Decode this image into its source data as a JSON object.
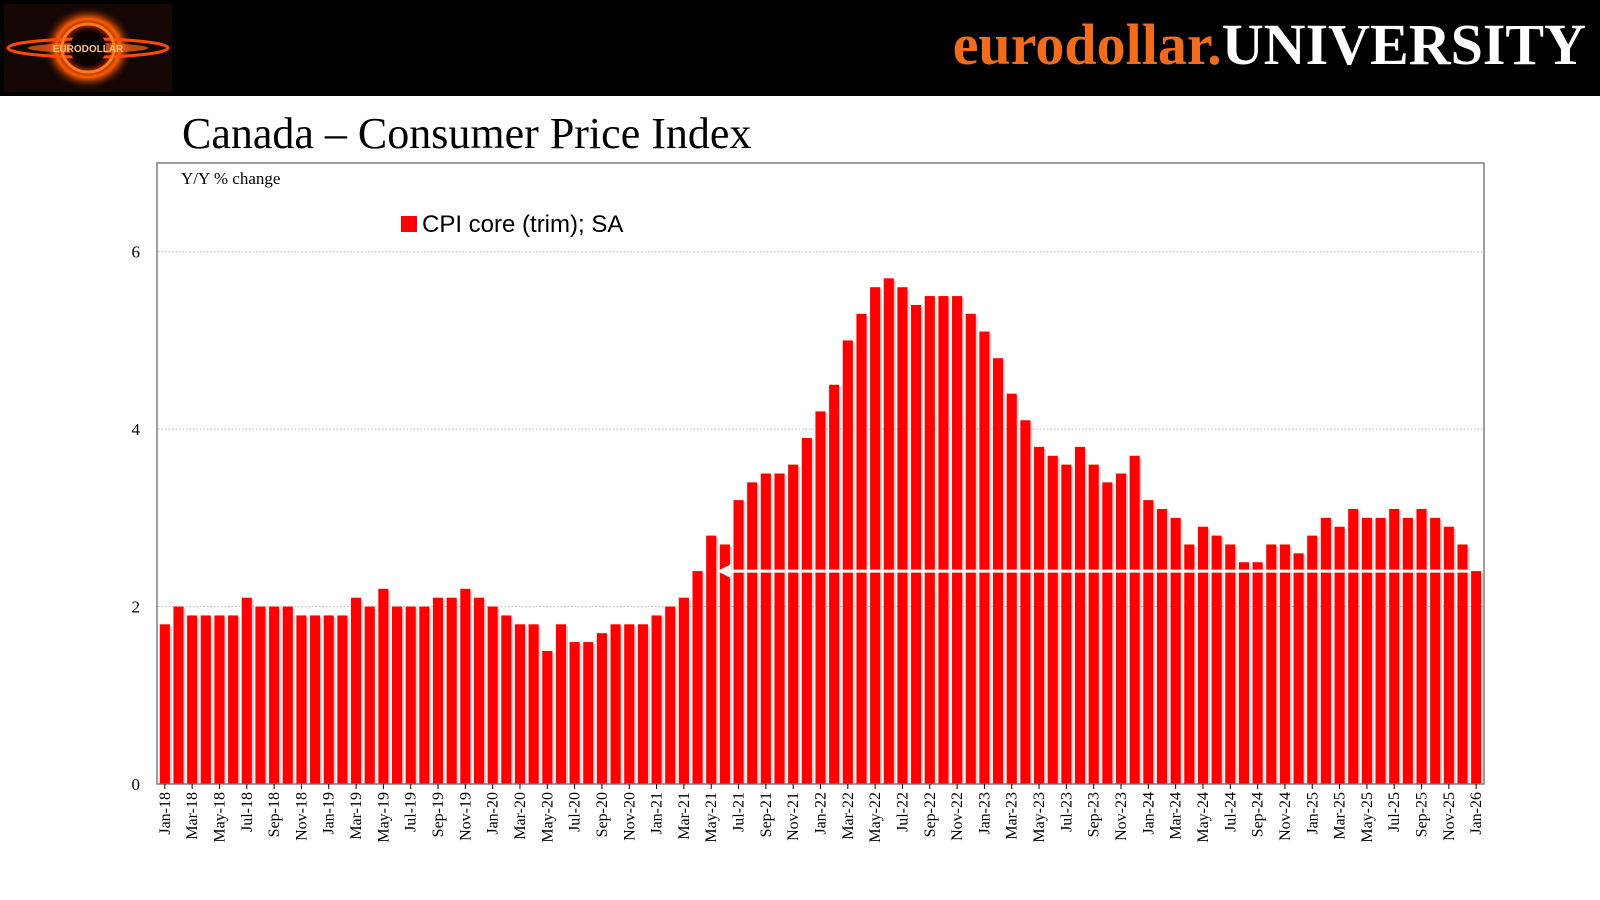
{
  "header": {
    "brand_part1": "eurodollar.",
    "brand_part2": "UNIVERSITY",
    "logo_text": "EURODOLLAR",
    "brand_color": "#f26c1c"
  },
  "page_title": "Canada – Consumer Price Index",
  "chart_data": {
    "type": "bar",
    "title": "Canada – Consumer Price Index",
    "ylabel": "Y/Y % change",
    "xlabel": "",
    "ylim": [
      0,
      7
    ],
    "yticks": [
      0,
      2,
      4,
      6
    ],
    "grid": "horizontal dotted",
    "legend_position": "top-left",
    "bar_color": "#ff0000",
    "annotation": {
      "type": "arrow",
      "description": "horizontal white arrow pointing left",
      "from_category_index": 96,
      "to_category_index": 40,
      "y_value": 2.4,
      "color": "#ffffff"
    },
    "series": [
      {
        "name": "CPI core (trim); SA",
        "values": [
          1.8,
          2.0,
          1.9,
          1.9,
          1.9,
          1.9,
          2.1,
          2.0,
          2.0,
          2.0,
          1.9,
          1.9,
          1.9,
          1.9,
          2.1,
          2.0,
          2.2,
          2.0,
          2.0,
          2.0,
          2.1,
          2.1,
          2.2,
          2.1,
          2.0,
          1.9,
          1.8,
          1.8,
          1.5,
          1.8,
          1.6,
          1.6,
          1.7,
          1.8,
          1.8,
          1.8,
          1.9,
          2.0,
          2.1,
          2.4,
          2.8,
          2.7,
          3.2,
          3.4,
          3.5,
          3.5,
          3.6,
          3.9,
          4.2,
          4.5,
          5.0,
          5.3,
          5.6,
          5.7,
          5.6,
          5.4,
          5.5,
          5.5,
          5.5,
          5.3,
          5.1,
          4.8,
          4.4,
          4.1,
          3.8,
          3.7,
          3.6,
          3.8,
          3.6,
          3.4,
          3.5,
          3.7,
          3.2,
          3.1,
          3.0,
          2.7,
          2.9,
          2.8,
          2.7,
          2.5,
          2.5,
          2.7,
          2.7,
          2.6,
          2.8,
          3.0,
          2.9,
          3.1,
          3.0,
          3.0,
          3.1,
          3.0,
          3.1,
          3.0,
          2.9,
          2.7,
          2.4
        ]
      }
    ],
    "categories": [
      "Jan-18",
      "Feb-18",
      "Mar-18",
      "Apr-18",
      "May-18",
      "Jun-18",
      "Jul-18",
      "Aug-18",
      "Sep-18",
      "Oct-18",
      "Nov-18",
      "Dec-18",
      "Jan-19",
      "Feb-19",
      "Mar-19",
      "Apr-19",
      "May-19",
      "Jun-19",
      "Jul-19",
      "Aug-19",
      "Sep-19",
      "Oct-19",
      "Nov-19",
      "Dec-19",
      "Jan-20",
      "Feb-20",
      "Mar-20",
      "Apr-20",
      "May-20",
      "Jun-20",
      "Jul-20",
      "Aug-20",
      "Sep-20",
      "Oct-20",
      "Nov-20",
      "Dec-20",
      "Jan-21",
      "Feb-21",
      "Mar-21",
      "Apr-21",
      "May-21",
      "Jun-21",
      "Jul-21",
      "Aug-21",
      "Sep-21",
      "Oct-21",
      "Nov-21",
      "Dec-21",
      "Jan-22",
      "Feb-22",
      "Mar-22",
      "Apr-22",
      "May-22",
      "Jun-22",
      "Jul-22",
      "Aug-22",
      "Sep-22",
      "Oct-22",
      "Nov-22",
      "Dec-22",
      "Jan-23",
      "Feb-23",
      "Mar-23",
      "Apr-23",
      "May-23",
      "Jun-23",
      "Jul-23",
      "Aug-23",
      "Sep-23",
      "Oct-23",
      "Nov-23",
      "Dec-23",
      "Jan-24",
      "Feb-24",
      "Mar-24",
      "Apr-24",
      "May-24",
      "Jun-24",
      "Jul-24",
      "Aug-24",
      "Sep-24",
      "Oct-24",
      "Nov-24",
      "Dec-24",
      "Jan-25",
      "Feb-25",
      "Mar-25",
      "Apr-25",
      "May-25",
      "Jun-25",
      "Jul-25",
      "Aug-25",
      "Sep-25",
      "Oct-25",
      "Nov-25",
      "Dec-25",
      "Jan-26"
    ],
    "tick_labels": [
      "Jan-18",
      "Mar-18",
      "May-18",
      "Jul-18",
      "Sep-18",
      "Nov-18",
      "Jan-19",
      "Mar-19",
      "May-19",
      "Jul-19",
      "Sep-19",
      "Nov-19",
      "Jan-20",
      "Mar-20",
      "May-20",
      "Jul-20",
      "Sep-20",
      "Nov-20",
      "Jan-21",
      "Mar-21",
      "May-21",
      "Jul-21",
      "Sep-21",
      "Nov-21",
      "Jan-22",
      "Mar-22",
      "May-22",
      "Jul-22",
      "Sep-22",
      "Nov-22",
      "Jan-23",
      "Mar-23",
      "May-23",
      "Jul-23",
      "Sep-23",
      "Nov-23",
      "Jan-24",
      "Mar-24",
      "May-24",
      "Jul-24",
      "Sep-24",
      "Nov-24",
      "Jan-25",
      "Mar-25",
      "May-25",
      "Jul-25",
      "Sep-25",
      "Nov-25",
      "Jan-26"
    ]
  }
}
